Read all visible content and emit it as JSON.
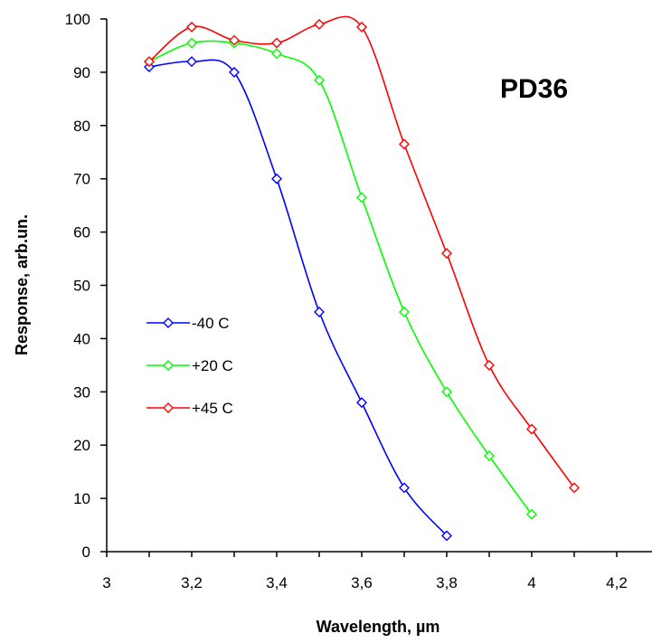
{
  "chart_data": {
    "type": "line",
    "title": "",
    "annotation": "PD36",
    "xlabel": "Wavelength, µm",
    "ylabel": "Response, arb.un.",
    "xlim": [
      3,
      4.2
    ],
    "ylim": [
      0,
      100
    ],
    "x_ticks": [
      "3",
      "3,2",
      "3,4",
      "3,6",
      "3,8",
      "4",
      "4,2"
    ],
    "x_tick_values": [
      3,
      3.2,
      3.4,
      3.6,
      3.8,
      4,
      4.2
    ],
    "y_ticks": [
      "0",
      "10",
      "20",
      "30",
      "40",
      "50",
      "60",
      "70",
      "80",
      "90",
      "100"
    ],
    "y_tick_values": [
      0,
      10,
      20,
      30,
      40,
      50,
      60,
      70,
      80,
      90,
      100
    ],
    "grid": false,
    "legend_position": "left",
    "series": [
      {
        "name": "-40 C",
        "color": "#0000ff",
        "x": [
          3.1,
          3.2,
          3.3,
          3.4,
          3.5,
          3.6,
          3.7,
          3.8
        ],
        "y": [
          91,
          92,
          90,
          70,
          45,
          28,
          12,
          3
        ]
      },
      {
        "name": "+20 C",
        "color": "#00ff00",
        "x": [
          3.1,
          3.2,
          3.3,
          3.4,
          3.5,
          3.6,
          3.7,
          3.8,
          3.9,
          4.0
        ],
        "y": [
          92,
          95.5,
          95.5,
          93.5,
          88.5,
          66.5,
          45,
          30,
          18,
          7
        ]
      },
      {
        "name": "+45 C",
        "color": "#ff0000",
        "x": [
          3.1,
          3.2,
          3.3,
          3.4,
          3.5,
          3.6,
          3.7,
          3.8,
          3.9,
          4.0,
          4.1
        ],
        "y": [
          92,
          98.5,
          96,
          95.5,
          99,
          98.5,
          76.5,
          56,
          35,
          23,
          12
        ]
      }
    ]
  }
}
